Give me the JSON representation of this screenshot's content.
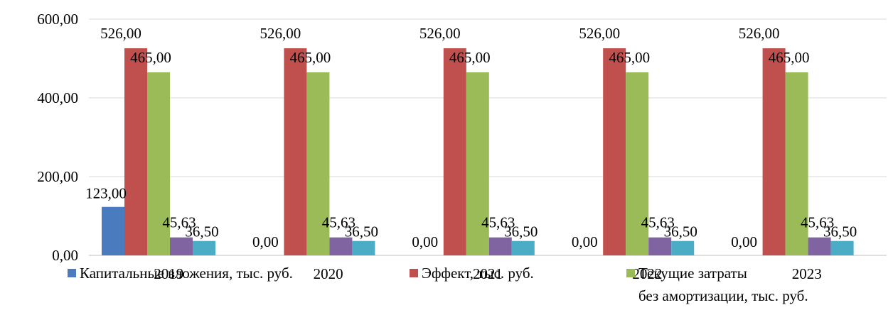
{
  "chart_data": {
    "type": "bar",
    "categories": [
      "2019",
      "2020",
      "2021",
      "2022",
      "2023"
    ],
    "series": [
      {
        "name": "Капитальные вложения, тыс. руб.",
        "values": [
          123.0,
          0.0,
          0.0,
          0.0,
          0.0
        ],
        "labels": [
          "123,00",
          "0,00",
          "0,00",
          "0,00",
          "0,00"
        ],
        "color": "#4a7bbf"
      },
      {
        "name": "Эффект, тыс. руб.",
        "values": [
          526.0,
          526.0,
          526.0,
          526.0,
          526.0
        ],
        "labels": [
          "526,00",
          "526,00",
          "526,00",
          "526,00",
          "526,00"
        ],
        "color": "#c0504d"
      },
      {
        "name": "Текущие затраты без амортизации, тыс. руб.",
        "values": [
          465.0,
          465.0,
          465.0,
          465.0,
          465.0
        ],
        "labels": [
          "465,00",
          "465,00",
          "465,00",
          "465,00",
          "465,00"
        ],
        "color": "#9bbb59"
      },
      {
        "name": "",
        "values": [
          45.63,
          45.63,
          45.63,
          45.63,
          45.63
        ],
        "labels": [
          "45,63",
          "45,63",
          "45,63",
          "45,63",
          "45,63"
        ],
        "color": "#8064a2"
      },
      {
        "name": "",
        "values": [
          36.5,
          36.5,
          36.5,
          36.5,
          36.5
        ],
        "labels": [
          "36,50",
          "36,50",
          "36,50",
          "36,50",
          "36,50"
        ],
        "color": "#4bacc6"
      }
    ],
    "y_ticks": [
      "0,00",
      "200,00",
      "400,00",
      "600,00"
    ],
    "ylim": [
      0,
      600
    ],
    "grid": true,
    "legend_position": "bottom",
    "title": "",
    "xlabel": "",
    "ylabel": ""
  },
  "legend": {
    "items": [
      {
        "lines": [
          "Капитальные вложения, тыс. руб."
        ]
      },
      {
        "lines": [
          "Эффект, тыс. руб."
        ]
      },
      {
        "lines": [
          "Текущие затраты",
          "без амортизации, тыс. руб."
        ]
      }
    ]
  }
}
